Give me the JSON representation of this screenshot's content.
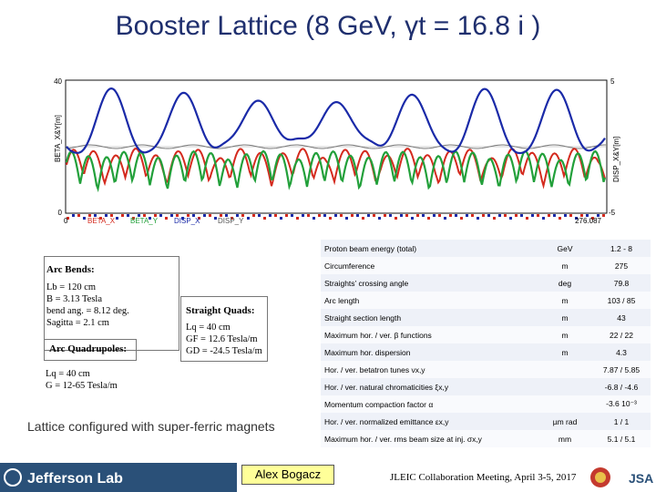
{
  "title": "Booster Lattice (8 GeV, γt = 16.8 i )",
  "plot": {
    "y_left_label": "BETA_X&Y[m]",
    "y_right_label": "DISP_X&Y[m]",
    "y_left_top": "40",
    "y_left_bottom": "0",
    "y_right_top": "5",
    "y_right_bottom": "-5",
    "x_start": "0",
    "x_end": "276.087",
    "legend": [
      "BETA_X",
      "BETA_Y",
      "DISP_X",
      "DISP_Y"
    ],
    "colors": {
      "beta_x": "#d42a1e",
      "beta_y": "#22a03a",
      "disp_x": "#1a2aa8",
      "disp_y": "#7a7a7a",
      "frame": "#111111"
    }
  },
  "arc_bends": {
    "header": "Arc Bends:",
    "lines": [
      "Lb = 120 cm",
      "B = 3.13 Tesla",
      "bend ang. = 8.12 deg.",
      "Sagitta = 2.1 cm"
    ]
  },
  "arc_quads": {
    "header": "Arc Quadrupoles:",
    "lines": [
      "Lq = 40 cm",
      "G = 12-65 Tesla/m"
    ]
  },
  "straight_quads": {
    "header": "Straight Quads:",
    "lines": [
      "Lq = 40 cm",
      "GF = 12.6 Tesla/m",
      "GD = -24.5 Tesla/m"
    ]
  },
  "lattice_note": "Lattice configured with super-ferric magnets",
  "author": "Alex Bogacz",
  "meeting": "JLEIC Collaboration Meeting, April 3-5, 2017",
  "logos": {
    "left": "Jefferson Lab",
    "right": "JSA"
  },
  "params": [
    {
      "name": "Proton beam energy (total)",
      "unit": "GeV",
      "value": "1.2 - 8"
    },
    {
      "name": "Circumference",
      "unit": "m",
      "value": "275"
    },
    {
      "name": "Straights’ crossing angle",
      "unit": "deg",
      "value": "79.8"
    },
    {
      "name": "Arc length",
      "unit": "m",
      "value": "103 / 85"
    },
    {
      "name": "Straight section length",
      "unit": "m",
      "value": "43"
    },
    {
      "name": "Maximum hor. / ver. β functions",
      "unit": "m",
      "value": "22 / 22"
    },
    {
      "name": "Maximum hor. dispersion",
      "unit": "m",
      "value": "4.3"
    },
    {
      "name": "Hor. / ver. betatron tunes νx,y",
      "unit": "",
      "value": "7.87 / 5.85"
    },
    {
      "name": "Hor. / ver. natural chromaticities ξx,y",
      "unit": "",
      "value": "-6.8 / -4.6"
    },
    {
      "name": "Momentum compaction factor α",
      "unit": "",
      "value": "-3.6 10⁻³"
    },
    {
      "name": "Hor. / ver. normalized emittance εx,y",
      "unit": "µm rad",
      "value": "1 / 1"
    },
    {
      "name": "Maximum hor. / ver. rms beam size at inj. σx,y",
      "unit": "mm",
      "value": "5.1 / 5.1"
    }
  ]
}
